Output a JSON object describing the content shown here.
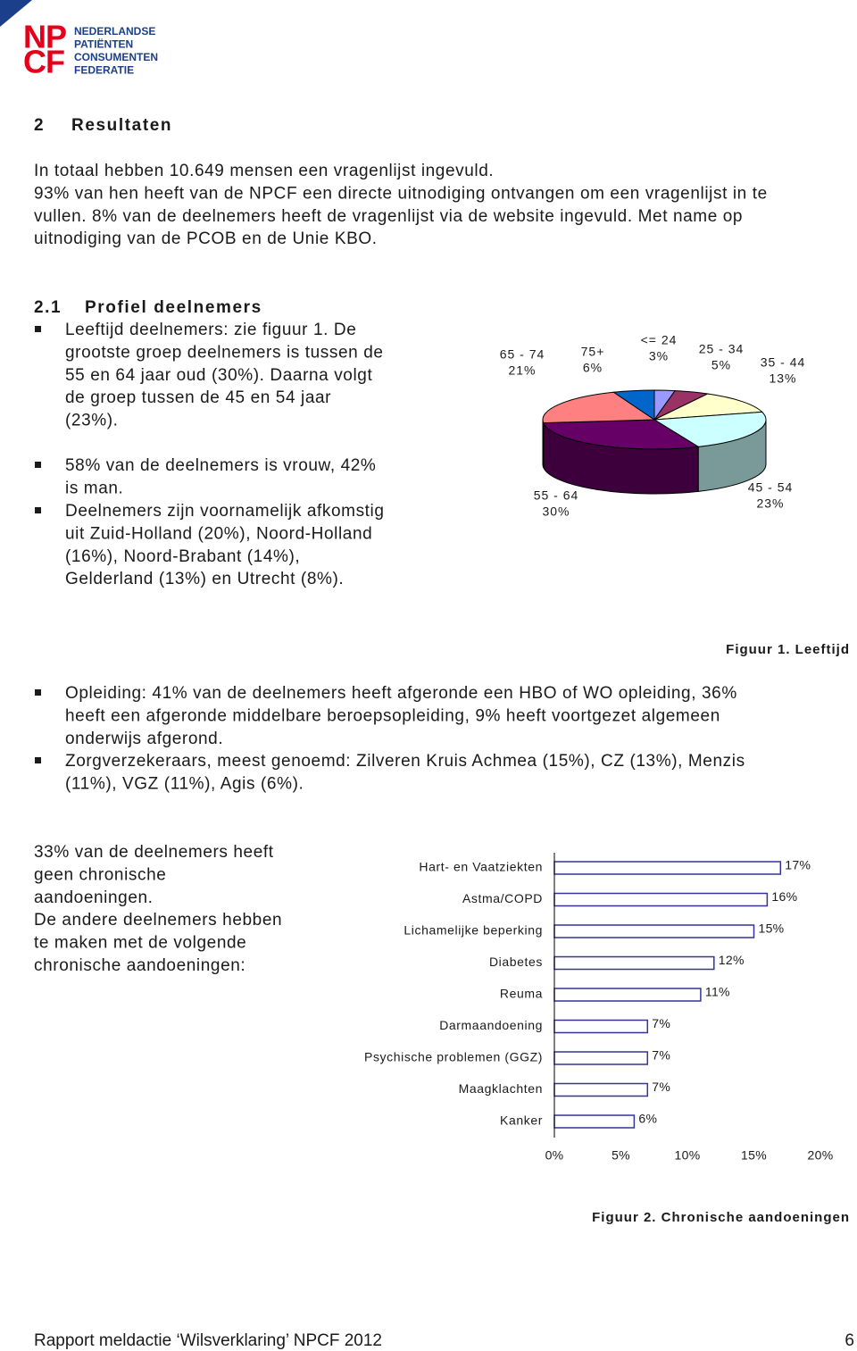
{
  "logo": {
    "mark": [
      "NP",
      "CF"
    ],
    "name": [
      "NEDERLANDSE",
      "PATIËNTEN",
      "CONSUMENTEN",
      "FEDERATIE"
    ]
  },
  "section": {
    "number": "2",
    "title": "Resultaten"
  },
  "intro": [
    "In totaal hebben 10.649 mensen een vragenlijst ingevuld.",
    "93% van hen heeft van de NPCF een directe uitnodiging ontvangen om een vragenlijst in te",
    "vullen. 8% van de deelnemers heeft de vragenlijst via de website ingevuld. Met name op",
    "uitnodiging van de PCOB en de Unie KBO."
  ],
  "subsection": {
    "number": "2.1",
    "title": "Profiel deelnemers"
  },
  "bullets_1": [
    [
      "Leeftijd deelnemers: zie figuur 1. De",
      "grootste groep deelnemers is tussen de",
      "55 en 64 jaar oud (30%). Daarna volgt",
      "de groep tussen de 45 en 54 jaar",
      "(23%)."
    ],
    [
      "58% van de deelnemers is vrouw, 42%",
      "is man."
    ],
    [
      "Deelnemers zijn voornamelijk afkomstig",
      "uit Zuid-Holland (20%), Noord-Holland",
      "(16%), Noord-Brabant (14%),",
      "Gelderland (13%) en Utrecht (8%)."
    ]
  ],
  "bullets_2": [
    [
      "Opleiding: 41% van de deelnemers heeft afgeronde een HBO of WO opleiding, 36%",
      "heeft een afgeronde middelbare beroepsopleiding, 9% heeft voortgezet algemeen",
      "onderwijs afgerond."
    ],
    [
      "Zorgverzekeraars, meest genoemd: Zilveren Kruis Achmea (15%), CZ (13%), Menzis",
      "(11%), VGZ (11%), Agis (6%)."
    ]
  ],
  "chronic_text": [
    "33% van de deelnemers heeft",
    "geen chronische",
    "aandoeningen.",
    "De andere deelnemers hebben",
    "te maken met de volgende",
    "chronische aandoeningen:"
  ],
  "chart_data": [
    {
      "type": "pie",
      "categories": [
        "<= 24",
        "25 - 34",
        "35 - 44",
        "45 - 54",
        "55 - 64",
        "65 - 74",
        "75+"
      ],
      "values": [
        3,
        5,
        13,
        23,
        30,
        21,
        6
      ],
      "value_labels": [
        "3%",
        "5%",
        "13%",
        "23%",
        "30%",
        "21%",
        "6%"
      ],
      "colors": [
        "#9999ff",
        "#993366",
        "#ffffcc",
        "#ccffff",
        "#660066",
        "#ff8080",
        "#0066cc"
      ],
      "caption": "Figuur 1. Leeftijd"
    },
    {
      "type": "bar",
      "categories": [
        "Hart- en Vaatziekten",
        "Astma/COPD",
        "Lichamelijke beperking",
        "Diabetes",
        "Reuma",
        "Darmaandoening",
        "Psychische problemen (GGZ)",
        "Maagklachten",
        "Kanker"
      ],
      "values": [
        17,
        16,
        15,
        12,
        11,
        7,
        7,
        7,
        6
      ],
      "value_labels": [
        "17%",
        "16%",
        "15%",
        "12%",
        "11%",
        "7%",
        "7%",
        "7%",
        "6%"
      ],
      "color": "#ffffff",
      "edgecolor": "#333399",
      "xlim": [
        0,
        20
      ],
      "xticks": [
        {
          "value": 0,
          "label": "0%"
        },
        {
          "value": 5,
          "label": "5%"
        },
        {
          "value": 10,
          "label": "10%"
        },
        {
          "value": 15,
          "label": "15%"
        },
        {
          "value": 20,
          "label": "20%"
        }
      ],
      "caption": "Figuur 2. Chronische aandoeningen"
    }
  ],
  "footer": {
    "text": "Rapport meldactie ‘Wilsverklaring’ NPCF 2012",
    "page": "6"
  }
}
